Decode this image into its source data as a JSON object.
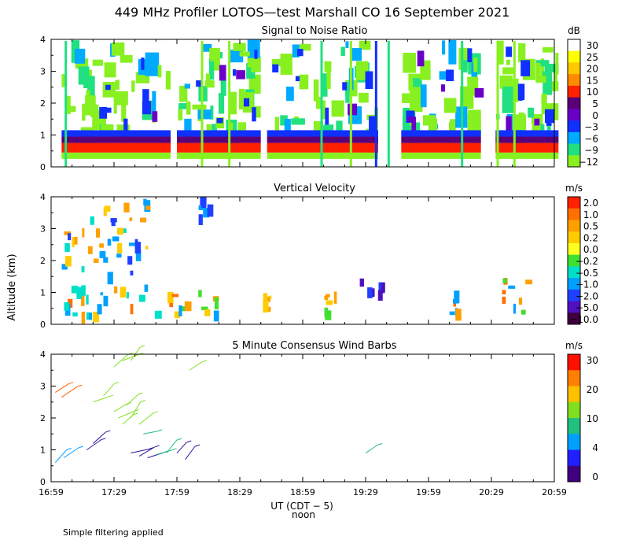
{
  "figure": {
    "title": "449 MHz Profiler LOTOS—test Marshall CO 16 September 2021",
    "y_axis_label": "Altitude (km)",
    "x_axis_label": "UT (CDT − 5)",
    "x_axis_sublabel": "noon",
    "footnote": "Simple filtering applied"
  },
  "chart_data": [
    {
      "type": "heatmap",
      "title": "Signal to Noise Ratio",
      "xlabel": "UT (CDT − 5)",
      "ylabel": "Altitude (km)",
      "x_range_minutes": [
        0,
        240
      ],
      "ylim": [
        0,
        4
      ],
      "x_ticks": [
        "16:59",
        "17:29",
        "17:59",
        "18:29",
        "18:59",
        "19:29",
        "19:59",
        "20:29",
        "20:59"
      ],
      "y_ticks": [
        "0",
        "1",
        "2",
        "3",
        "4"
      ],
      "colorbar": {
        "unit": "dB",
        "labels": [
          "30",
          "25",
          "20",
          "15",
          "10",
          "5",
          "0",
          "−3",
          "−6",
          "−9",
          "−12"
        ],
        "colors": [
          "#ffffff",
          "#ffff00",
          "#ffc800",
          "#ff8c00",
          "#ff2000",
          "#5a0078",
          "#6a00c8",
          "#1030ff",
          "#00aaff",
          "#20e080",
          "#88f020"
        ]
      },
      "data_segments_minutes": [
        [
          5,
          57
        ],
        [
          60,
          100
        ],
        [
          103,
          156
        ],
        [
          167,
          205
        ],
        [
          212,
          242
        ]
      ],
      "vertical_streaks_minutes": [
        [
          7,
          "#20e080"
        ],
        [
          72,
          "#88f020"
        ],
        [
          85,
          "#88f020"
        ],
        [
          129,
          "#20e080"
        ],
        [
          143,
          "#88f020"
        ],
        [
          155,
          "#1030ff"
        ],
        [
          161,
          "#20e080"
        ],
        [
          196,
          "#20e080"
        ],
        [
          213,
          "#88f020"
        ],
        [
          221,
          "#88f020"
        ]
      ],
      "layers_km": [
        {
          "from": 0.25,
          "to": 0.45,
          "color": "#88f020"
        },
        {
          "from": 0.45,
          "to": 0.75,
          "color": "#ff2000"
        },
        {
          "from": 0.75,
          "to": 0.95,
          "color": "#5a0078"
        },
        {
          "from": 0.95,
          "to": 1.15,
          "color": "#1030ff"
        }
      ]
    },
    {
      "type": "heatmap",
      "title": "Vertical Velocity",
      "xlabel": "UT (CDT − 5)",
      "ylabel": "Altitude (km)",
      "ylim": [
        0,
        4
      ],
      "x_ticks": [
        "16:59",
        "17:29",
        "17:59",
        "18:29",
        "18:59",
        "19:29",
        "19:59",
        "20:29",
        "20:59"
      ],
      "y_ticks": [
        "0",
        "1",
        "2",
        "3",
        "4"
      ],
      "colorbar": {
        "unit": "m/s",
        "labels": [
          "2.0",
          "1.0",
          "0.5",
          "0.2",
          "0.0",
          "−0.2",
          "−0.5",
          "−1.0",
          "−2.0",
          "−5.0",
          "−10.0"
        ],
        "colors": [
          "#ff2000",
          "#ff7000",
          "#ffa000",
          "#ffcc00",
          "#ffff20",
          "#40e030",
          "#00e0c8",
          "#00a0ff",
          "#2040ff",
          "#5010c0",
          "#400040"
        ]
      },
      "patches": [
        {
          "t": [
            5,
            48
          ],
          "z": [
            1.6,
            3.4
          ],
          "colors": [
            "#00a0ff",
            "#ffa000",
            "#2040ff",
            "#ffcc00",
            "#00e0c8"
          ]
        },
        {
          "t": [
            5,
            65
          ],
          "z": [
            0.3,
            1.3
          ],
          "colors": [
            "#ffa000",
            "#00a0ff",
            "#ffcc00",
            "#ff7000",
            "#00e0c8"
          ]
        },
        {
          "t": [
            60,
            82
          ],
          "z": [
            0.3,
            1.2
          ],
          "colors": [
            "#ffa000",
            "#00a0ff",
            "#ffcc00",
            "#40e030"
          ]
        },
        {
          "t": [
            100,
            106
          ],
          "z": [
            0.4,
            1.1
          ],
          "colors": [
            "#ffa000",
            "#ffcc00"
          ]
        },
        {
          "t": [
            130,
            137
          ],
          "z": [
            0.4,
            1.5
          ],
          "colors": [
            "#ffa000",
            "#40e030",
            "#ffcc00"
          ]
        },
        {
          "t": [
            145,
            162
          ],
          "z": [
            0.7,
            1.5
          ],
          "colors": [
            "#5010c0",
            "#2040ff"
          ]
        },
        {
          "t": [
            190,
            200
          ],
          "z": [
            0.3,
            1.1
          ],
          "colors": [
            "#00a0ff",
            "#ffa000",
            "#ff7000"
          ]
        },
        {
          "t": [
            215,
            230
          ],
          "z": [
            0.3,
            1.6
          ],
          "colors": [
            "#ffa000",
            "#00a0ff",
            "#ff7000",
            "#40e030"
          ]
        },
        {
          "t": [
            25,
            55
          ],
          "z": [
            3.6,
            4.0
          ],
          "colors": [
            "#00a0ff",
            "#ffa000",
            "#ffcc00"
          ]
        },
        {
          "t": [
            70,
            78
          ],
          "z": [
            3.3,
            4.0
          ],
          "colors": [
            "#00a0ff",
            "#2040ff"
          ]
        }
      ]
    },
    {
      "type": "scatter",
      "title": "5 Minute Consensus Wind Barbs",
      "xlabel": "UT (CDT − 5)",
      "ylabel": "Altitude (km)",
      "ylim": [
        0,
        4
      ],
      "x_ticks": [
        "16:59",
        "17:29",
        "17:59",
        "18:29",
        "18:59",
        "19:29",
        "19:59",
        "20:29",
        "20:59"
      ],
      "y_ticks": [
        "0",
        "1",
        "2",
        "3",
        "4"
      ],
      "colorbar": {
        "unit": "m/s",
        "labels": [
          "30",
          "20",
          "10",
          "4",
          "0"
        ],
        "colors": [
          "#ff1000",
          "#ff8000",
          "#ffc000",
          "#80e020",
          "#20c080",
          "#00a0ff",
          "#2020ff",
          "#400080"
        ]
      },
      "barbs": [
        {
          "t": 2,
          "z": 2.8,
          "speed": 24
        },
        {
          "t": 5,
          "z": 2.65,
          "speed": 24
        },
        {
          "t": 2,
          "z": 0.6,
          "speed": 5
        },
        {
          "t": 6,
          "z": 0.75,
          "speed": 5
        },
        {
          "t": 17,
          "z": 1.0,
          "speed": 2
        },
        {
          "t": 20,
          "z": 1.2,
          "speed": 2
        },
        {
          "t": 20,
          "z": 2.5,
          "speed": 12
        },
        {
          "t": 25,
          "z": 2.7,
          "speed": 12
        },
        {
          "t": 30,
          "z": 3.6,
          "speed": 12
        },
        {
          "t": 34,
          "z": 3.8,
          "speed": 12
        },
        {
          "t": 38,
          "z": 3.8,
          "speed": 12
        },
        {
          "t": 30,
          "z": 2.2,
          "speed": 12
        },
        {
          "t": 32,
          "z": 2.0,
          "speed": 10
        },
        {
          "t": 34,
          "z": 1.8,
          "speed": 10
        },
        {
          "t": 36,
          "z": 2.4,
          "speed": 12
        },
        {
          "t": 38,
          "z": 2.0,
          "speed": 10
        },
        {
          "t": 42,
          "z": 1.8,
          "speed": 10
        },
        {
          "t": 44,
          "z": 1.5,
          "speed": 8
        },
        {
          "t": 38,
          "z": 0.9,
          "speed": 2
        },
        {
          "t": 42,
          "z": 0.8,
          "speed": 2
        },
        {
          "t": 46,
          "z": 0.75,
          "speed": 2
        },
        {
          "t": 50,
          "z": 0.85,
          "speed": 8
        },
        {
          "t": 55,
          "z": 0.9,
          "speed": 8
        },
        {
          "t": 60,
          "z": 0.9,
          "speed": 3
        },
        {
          "t": 64,
          "z": 0.7,
          "speed": 3
        },
        {
          "t": 66,
          "z": 3.5,
          "speed": 12
        },
        {
          "t": 150,
          "z": 0.9,
          "speed": 9
        }
      ]
    }
  ]
}
